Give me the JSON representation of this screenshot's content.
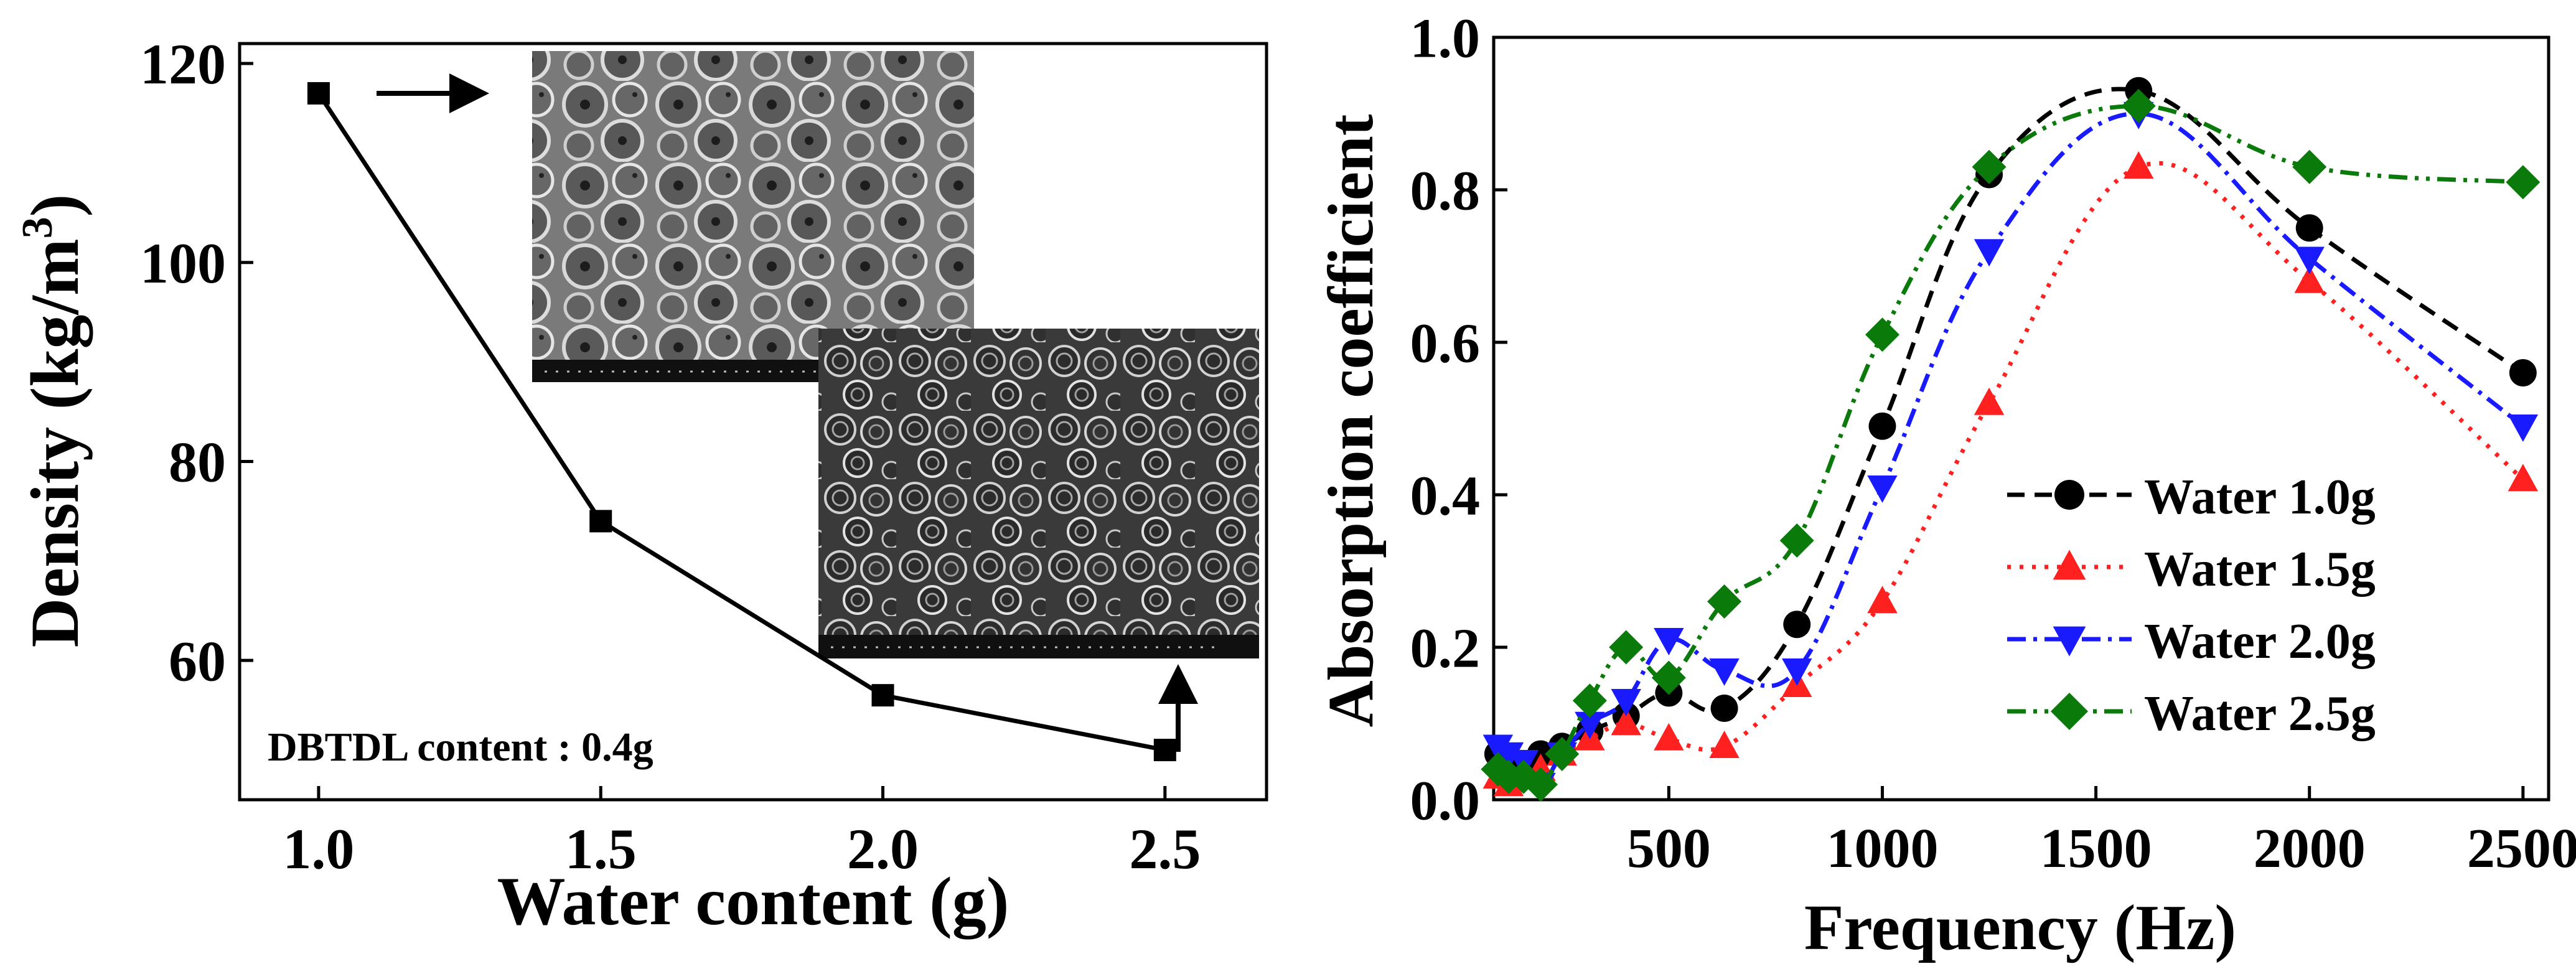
{
  "chart_data": [
    {
      "type": "line",
      "title": "",
      "xlabel": "Water content (g)",
      "ylabel": "Density (kg/m",
      "ylabel_sup": "3",
      "ylabel_close": ")",
      "xlim": [
        0.86,
        2.68
      ],
      "ylim": [
        46,
        122
      ],
      "xticks": [
        1.0,
        1.5,
        2.0,
        2.5
      ],
      "xtick_labels": [
        "1.0",
        "1.5",
        "2.0",
        "2.5"
      ],
      "yticks": [
        60,
        80,
        100,
        120
      ],
      "ytick_labels": [
        "60",
        "80",
        "100",
        "120"
      ],
      "series": [
        {
          "name": "Density",
          "marker": "square",
          "color": "#000000",
          "x": [
            1.0,
            1.5,
            2.0,
            2.5
          ],
          "y": [
            117,
            74,
            56.5,
            51
          ]
        }
      ],
      "annotation": "DBTDL content : 0.4g",
      "insets": [
        "SEM micrograph of foam at water 1.0g",
        "SEM micrograph of foam at water 2.5g"
      ]
    },
    {
      "type": "line",
      "title": "",
      "xlabel": "Frequency (Hz)",
      "ylabel": "Absorption coefficient",
      "xlim": [
        90,
        2560
      ],
      "ylim": [
        0,
        1.0
      ],
      "xticks": [
        500,
        1000,
        1500,
        2000,
        2500
      ],
      "xtick_labels": [
        "500",
        "1000",
        "1500",
        "2000",
        "2500"
      ],
      "yticks": [
        0.0,
        0.2,
        0.4,
        0.6,
        0.8,
        1.0
      ],
      "ytick_labels": [
        "0.0",
        "0.2",
        "0.4",
        "0.6",
        "0.8",
        "1.0"
      ],
      "legend_position": "center-right",
      "series": [
        {
          "name": "Water 1.0g",
          "marker": "circle",
          "color": "#000000",
          "dash": "28 16",
          "x": [
            100,
            125,
            160,
            200,
            250,
            315,
            400,
            500,
            630,
            800,
            1000,
            1250,
            1600,
            2000,
            2500
          ],
          "y": [
            0.06,
            0.05,
            0.04,
            0.06,
            0.07,
            0.09,
            0.11,
            0.14,
            0.12,
            0.23,
            0.49,
            0.82,
            0.93,
            0.75,
            0.56
          ]
        },
        {
          "name": "Water 1.5g",
          "marker": "triangle-up",
          "color": "#ff2020",
          "dash": "6 14",
          "x": [
            100,
            125,
            160,
            200,
            250,
            315,
            400,
            500,
            630,
            800,
            1000,
            1250,
            1600,
            2000,
            2500
          ],
          "y": [
            0.03,
            0.02,
            0.03,
            0.04,
            0.06,
            0.08,
            0.1,
            0.08,
            0.07,
            0.15,
            0.26,
            0.52,
            0.83,
            0.68,
            0.42
          ]
        },
        {
          "name": "Water 2.0g",
          "marker": "triangle-down",
          "color": "#1a1aff",
          "dash": "30 12 6 12",
          "x": [
            100,
            125,
            160,
            200,
            250,
            315,
            400,
            500,
            630,
            800,
            1000,
            1250,
            1600,
            2000,
            2500
          ],
          "y": [
            0.07,
            0.06,
            0.05,
            0.02,
            0.06,
            0.1,
            0.13,
            0.21,
            0.17,
            0.17,
            0.41,
            0.72,
            0.9,
            0.71,
            0.49
          ]
        },
        {
          "name": "Water 2.5g",
          "marker": "diamond",
          "color": "#0a7a0a",
          "dash": "30 12 6 12 6 12",
          "x": [
            100,
            125,
            160,
            200,
            250,
            315,
            400,
            500,
            630,
            800,
            1000,
            1250,
            1600,
            2000,
            2500
          ],
          "y": [
            0.04,
            0.03,
            0.03,
            0.02,
            0.06,
            0.13,
            0.2,
            0.16,
            0.26,
            0.34,
            0.61,
            0.83,
            0.91,
            0.83,
            0.81
          ]
        }
      ]
    }
  ]
}
